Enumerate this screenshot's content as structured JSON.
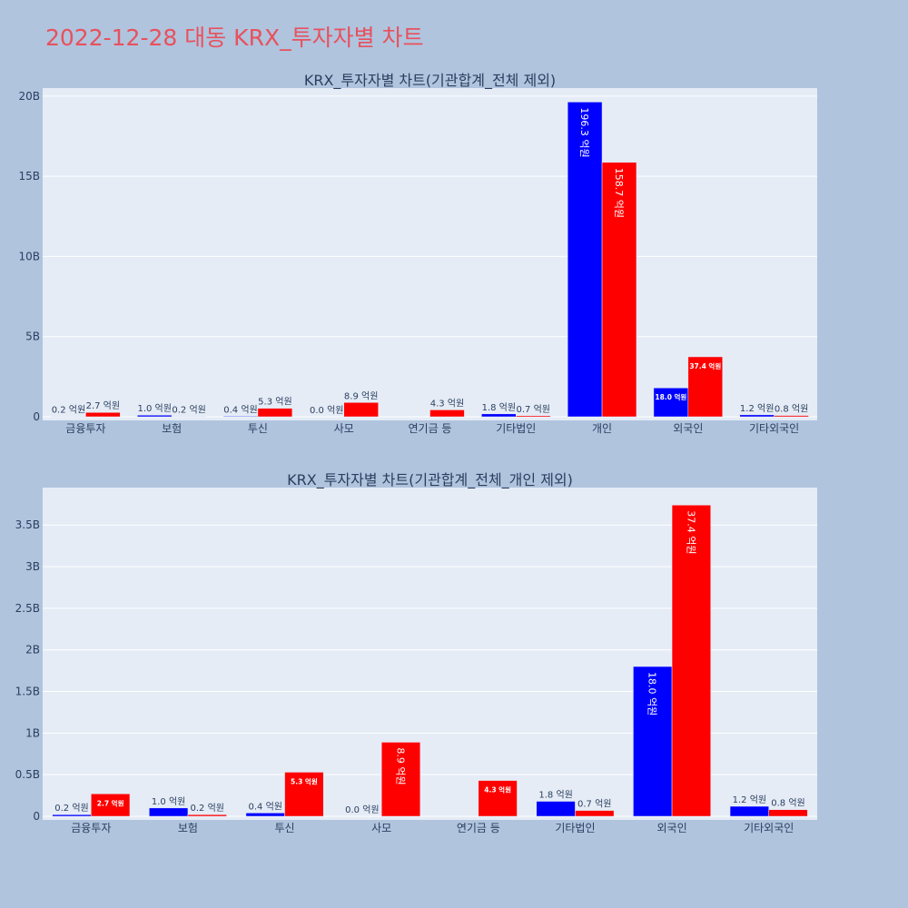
{
  "page": {
    "title": "2022-12-28 대동 KRX_투자자별 차트"
  },
  "colors": {
    "buy": "#0000ff",
    "sell": "#ff0000",
    "plot_bg": "#e5ecf6",
    "page_bg": "#b0c4de",
    "title": "#e8515d"
  },
  "chart_data": [
    {
      "type": "bar",
      "title": "KRX_투자자별 차트(기관합계_전체 제외)",
      "categories": [
        "금융투자",
        "보험",
        "투신",
        "사모",
        "연기금 등",
        "기타법인",
        "개인",
        "외국인",
        "기타외국인"
      ],
      "ylim": [
        0,
        20500000000
      ],
      "yticks": [
        {
          "value": 0,
          "label": "0"
        },
        {
          "value": 5000000000,
          "label": "5B"
        },
        {
          "value": 10000000000,
          "label": "10B"
        },
        {
          "value": 15000000000,
          "label": "15B"
        },
        {
          "value": 20000000000,
          "label": "20B"
        }
      ],
      "grid": true,
      "series": [
        {
          "color": "#0000ff",
          "values": [
            20000000,
            100000000,
            40000000,
            0,
            0,
            180000000,
            19630000000,
            1800000000,
            120000000
          ],
          "labels": [
            "0.2 억원",
            "1.0 억원",
            "0.4 억원",
            "0.0 억원",
            "",
            "1.8 억원",
            "196.3 억원",
            "18.0 억원",
            "1.2 억원"
          ]
        },
        {
          "color": "#ff0000",
          "values": [
            270000000,
            20000000,
            530000000,
            890000000,
            430000000,
            70000000,
            15870000000,
            3740000000,
            80000000
          ],
          "labels": [
            "2.7 억원",
            "0.2 억원",
            "5.3 억원",
            "8.9 억원",
            "4.3 억원",
            "0.7 억원",
            "158.7 억원",
            "37.4 억원",
            "0.8 억원"
          ]
        }
      ]
    },
    {
      "type": "bar",
      "title": "KRX_투자자별 차트(기관합계_전체_개인 제외)",
      "categories": [
        "금융투자",
        "보험",
        "투신",
        "사모",
        "연기금 등",
        "기타법인",
        "외국인",
        "기타외국인"
      ],
      "ylim": [
        0,
        3950000000
      ],
      "yticks": [
        {
          "value": 0,
          "label": "0"
        },
        {
          "value": 500000000,
          "label": "0.5B"
        },
        {
          "value": 1000000000,
          "label": "1B"
        },
        {
          "value": 1500000000,
          "label": "1.5B"
        },
        {
          "value": 2000000000,
          "label": "2B"
        },
        {
          "value": 2500000000,
          "label": "2.5B"
        },
        {
          "value": 3000000000,
          "label": "3B"
        },
        {
          "value": 3500000000,
          "label": "3.5B"
        }
      ],
      "grid": true,
      "series": [
        {
          "color": "#0000ff",
          "values": [
            20000000,
            100000000,
            40000000,
            0,
            0,
            180000000,
            1800000000,
            120000000
          ],
          "labels": [
            "0.2 억원",
            "1.0 억원",
            "0.4 억원",
            "0.0 억원",
            "",
            "1.8 억원",
            "18.0 억원",
            "1.2 억원"
          ]
        },
        {
          "color": "#ff0000",
          "values": [
            270000000,
            20000000,
            530000000,
            890000000,
            430000000,
            70000000,
            3740000000,
            80000000
          ],
          "labels": [
            "2.7 억원",
            "0.2 억원",
            "5.3 억원",
            "8.9 억원",
            "4.3 억원",
            "0.7 억원",
            "37.4 억원",
            "0.8 억원"
          ]
        }
      ]
    }
  ]
}
